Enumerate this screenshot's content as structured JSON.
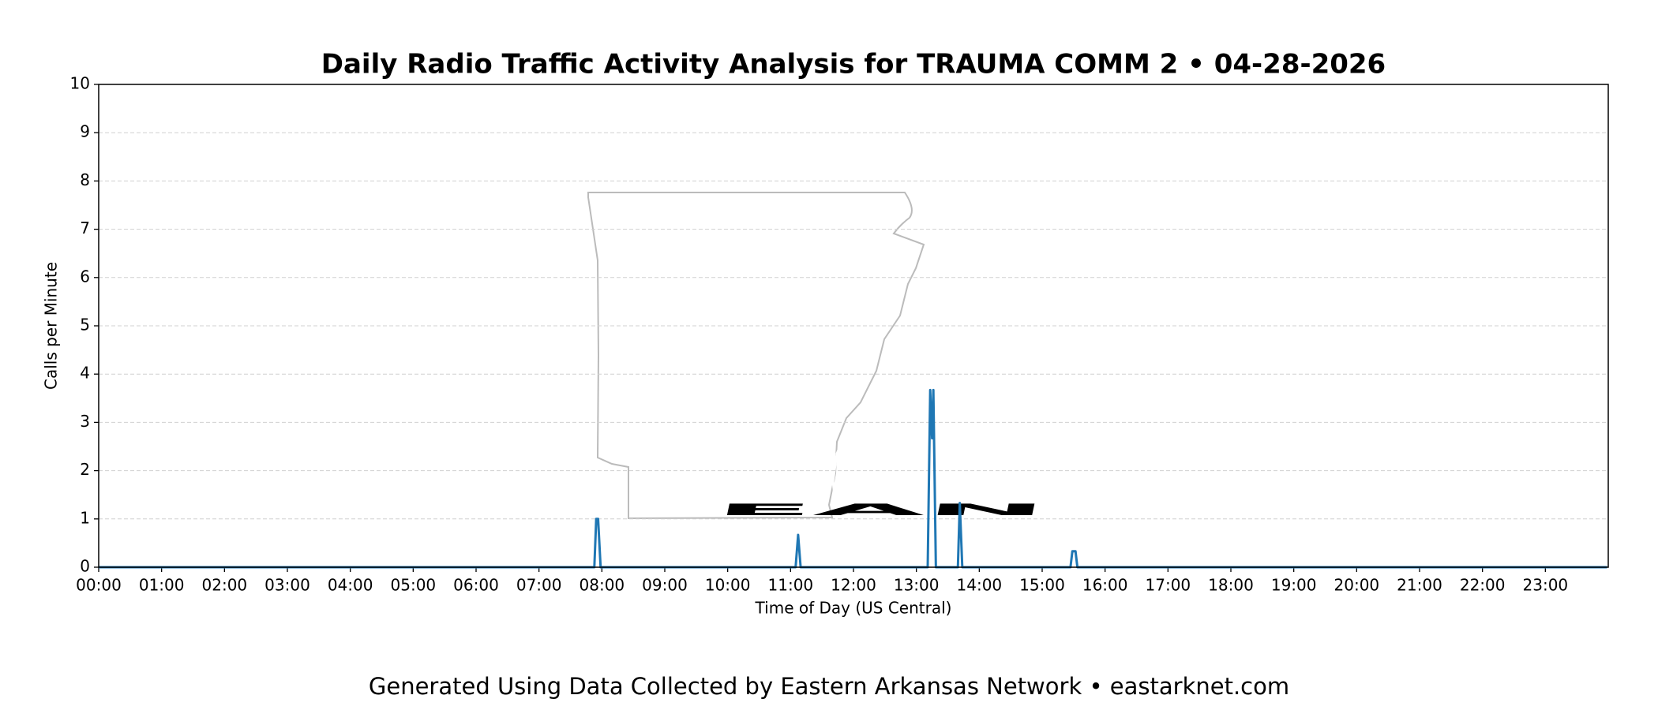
{
  "chart_data": {
    "type": "line",
    "title": "Daily Radio Traffic Activity Analysis for TRAUMA COMM 2 • 04-28-2026",
    "x_label": "Time of Day (US Central)",
    "y_label": "Calls per Minute",
    "watermark": "EAN",
    "footer": "Generated Using Data Collected by Eastern Arkansas Network • eastarknet.com",
    "x": [
      0,
      7.88,
      7.91,
      7.94,
      7.98,
      11.08,
      11.12,
      11.16,
      13.18,
      13.22,
      13.25,
      13.27,
      13.31,
      13.66,
      13.69,
      13.73,
      15.45,
      15.48,
      15.53,
      15.56,
      23.98
    ],
    "series": [
      {
        "name": "TRAUMA COMM 2",
        "color": "#1f77b4",
        "values": [
          0,
          0,
          1,
          1,
          0,
          0,
          0.67,
          0,
          0,
          3.67,
          2.67,
          3.67,
          0,
          0,
          1.33,
          0,
          0,
          0.33,
          0.33,
          0,
          0
        ]
      }
    ],
    "xlim": [
      0,
      24
    ],
    "xticks": [
      {
        "value": 0,
        "label": "00:00"
      },
      {
        "value": 1,
        "label": "01:00"
      },
      {
        "value": 2,
        "label": "02:00"
      },
      {
        "value": 3,
        "label": "03:00"
      },
      {
        "value": 4,
        "label": "04:00"
      },
      {
        "value": 5,
        "label": "05:00"
      },
      {
        "value": 6,
        "label": "06:00"
      },
      {
        "value": 7,
        "label": "07:00"
      },
      {
        "value": 8,
        "label": "08:00"
      },
      {
        "value": 9,
        "label": "09:00"
      },
      {
        "value": 10,
        "label": "10:00"
      },
      {
        "value": 11,
        "label": "11:00"
      },
      {
        "value": 12,
        "label": "12:00"
      },
      {
        "value": 13,
        "label": "13:00"
      },
      {
        "value": 14,
        "label": "14:00"
      },
      {
        "value": 15,
        "label": "15:00"
      },
      {
        "value": 16,
        "label": "16:00"
      },
      {
        "value": 17,
        "label": "17:00"
      },
      {
        "value": 18,
        "label": "18:00"
      },
      {
        "value": 19,
        "label": "19:00"
      },
      {
        "value": 20,
        "label": "20:00"
      },
      {
        "value": 21,
        "label": "21:00"
      },
      {
        "value": 22,
        "label": "22:00"
      },
      {
        "value": 23,
        "label": "23:00"
      }
    ],
    "ylim": [
      0,
      10
    ],
    "yticks": [
      0,
      1,
      2,
      3,
      4,
      5,
      6,
      7,
      8,
      9,
      10
    ],
    "grid": true
  }
}
